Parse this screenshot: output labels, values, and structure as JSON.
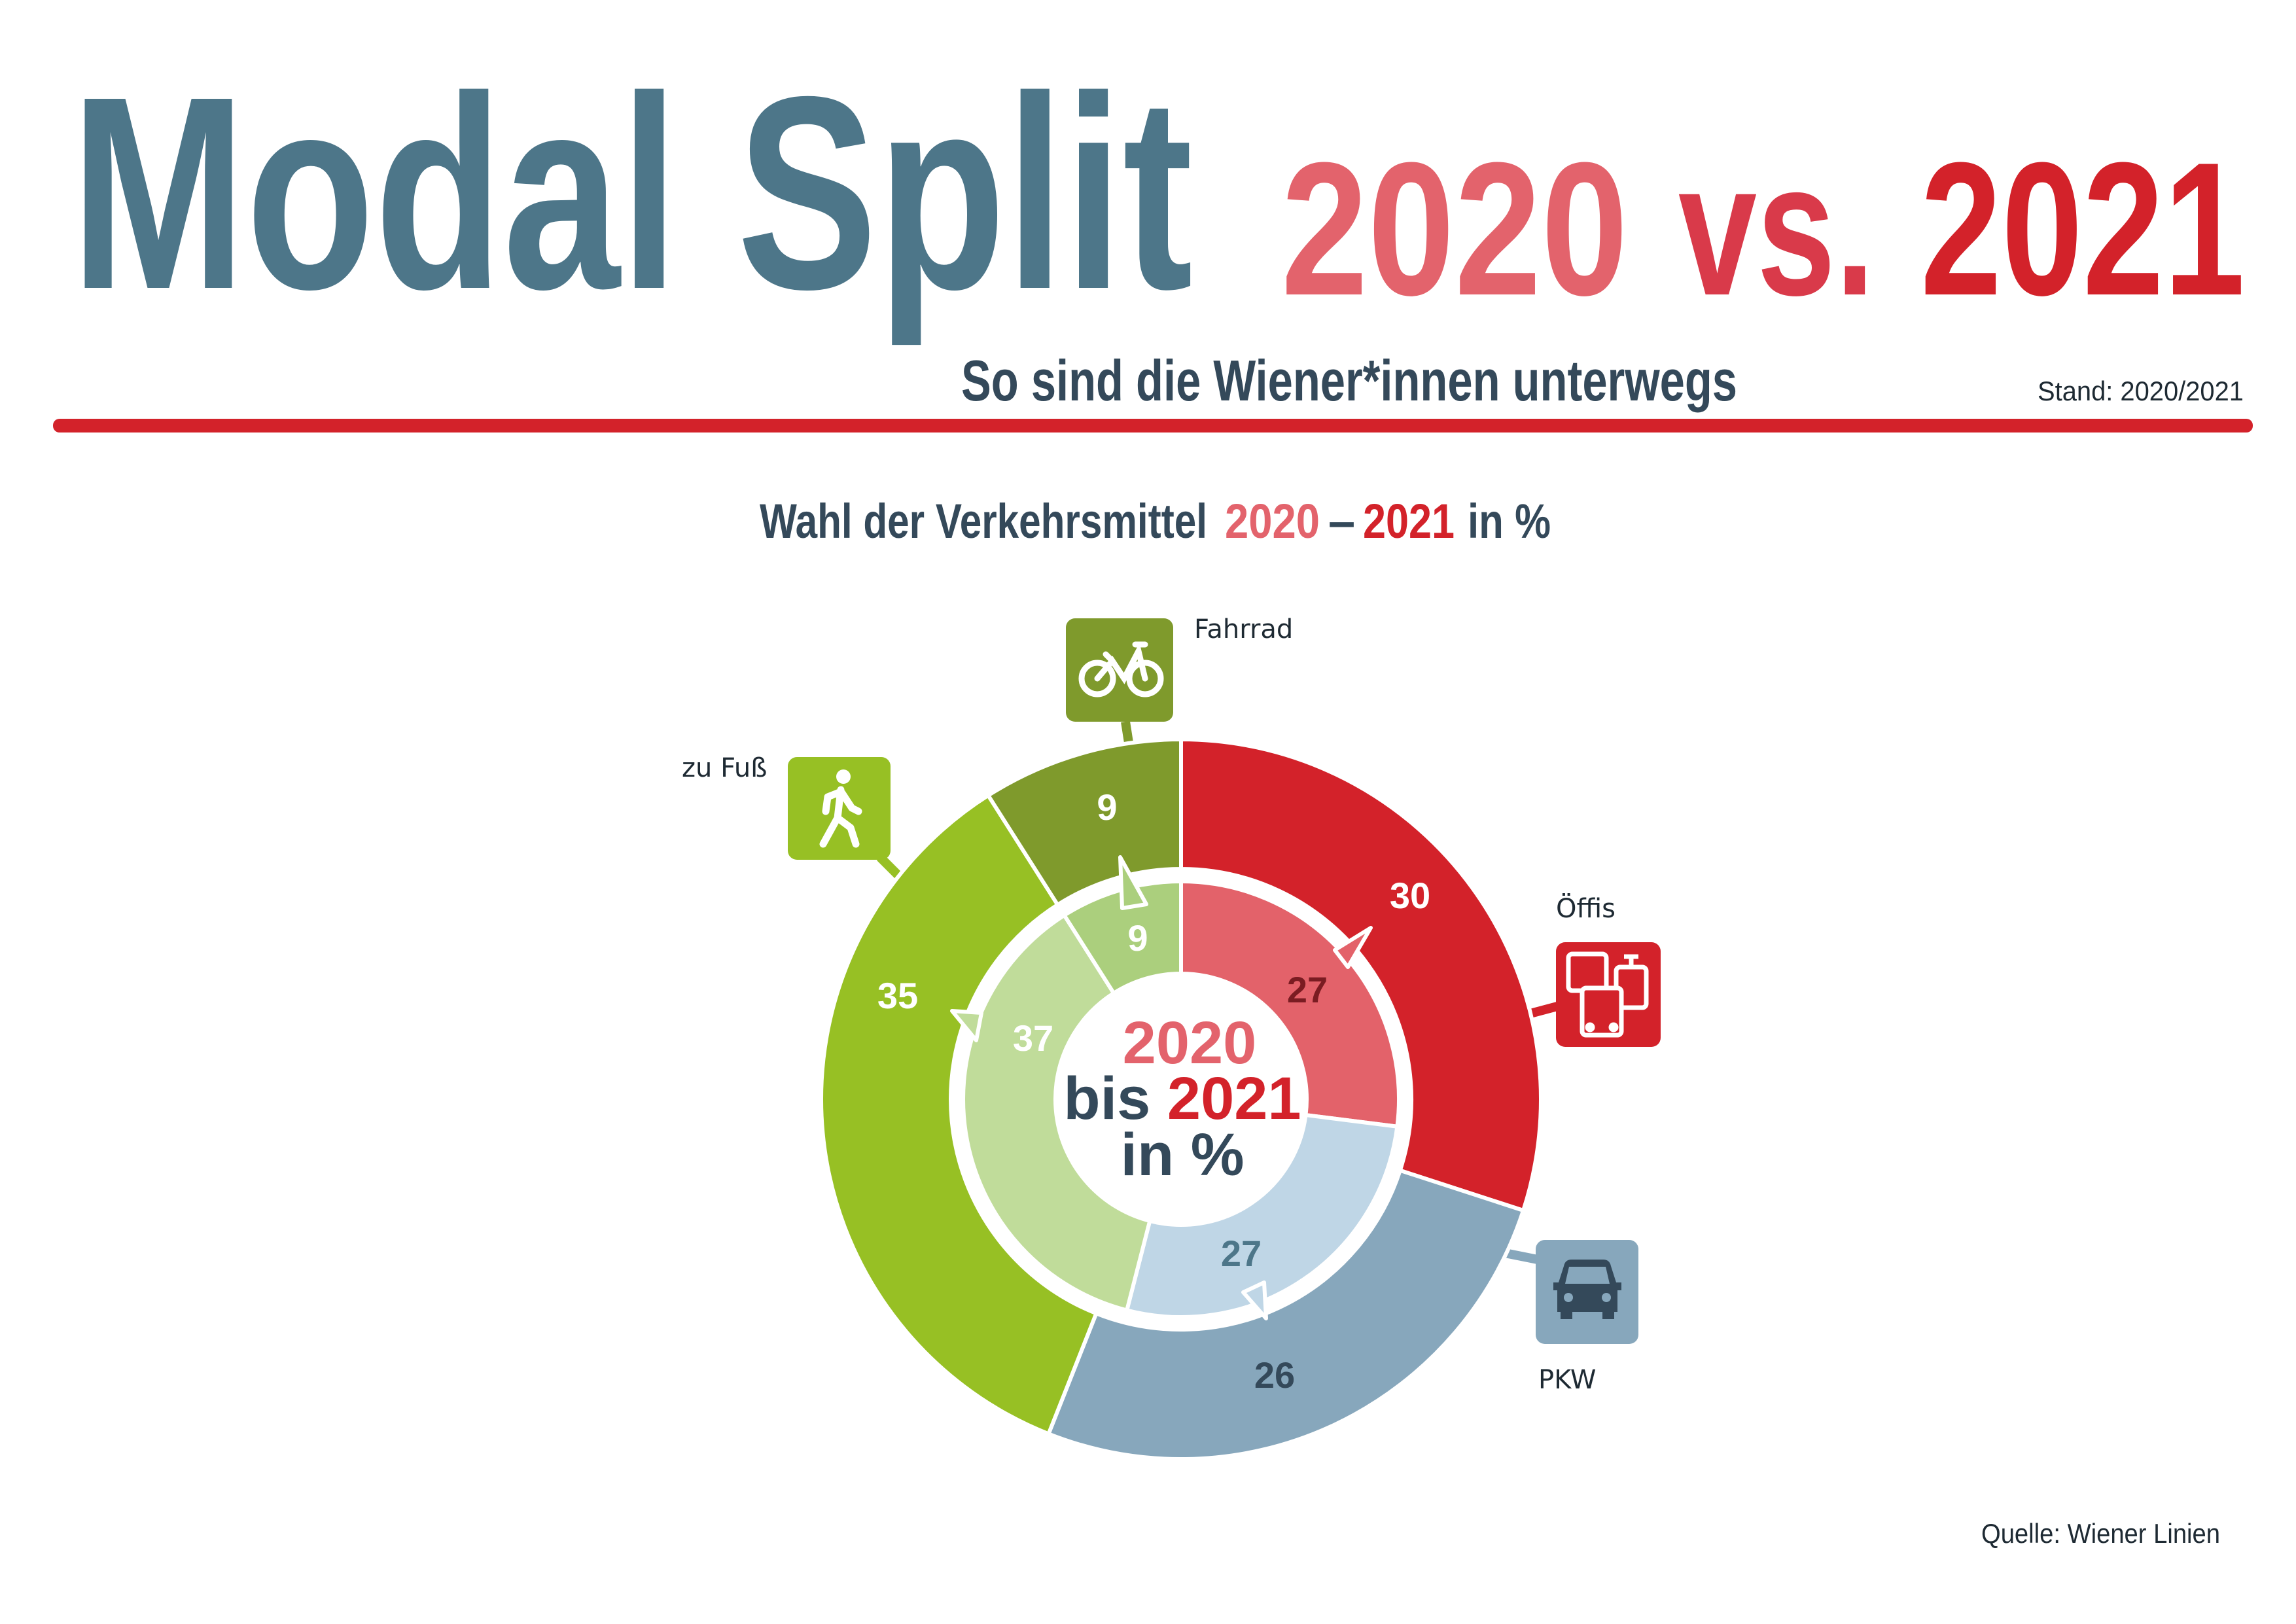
{
  "header": {
    "title": "Modal Split",
    "year_a": "2020",
    "vs": "vs.",
    "year_b": "2021",
    "subtitle": "So sind die Wiener*innen unterwegs",
    "stand": "Stand: 2020/2021"
  },
  "colors": {
    "title": "#4d7689",
    "year_2020": "#e3636c",
    "vs": "#d93a4a",
    "year_2021": "#d3222a",
    "text_dark": "#34495a",
    "rule": "#d3222a"
  },
  "chart_data": {
    "type": "pie",
    "variant": "donut-nested",
    "title_parts": {
      "prefix": "Wahl der Verkehrsmittel",
      "year_a": "2020",
      "dash": "–",
      "year_b": "2021",
      "suffix": "in %"
    },
    "center_label": {
      "line1": "2020",
      "line2_prefix": "bis",
      "line2_year": "2021",
      "line3": "in %"
    },
    "categories": [
      "Öffis",
      "PKW",
      "zu Fuß",
      "Fahrrad"
    ],
    "category_icons": [
      "bus-tram-icon",
      "car-icon",
      "pedestrian-icon",
      "bicycle-icon"
    ],
    "category_colors_2021": [
      "#d3222a",
      "#87a7bc",
      "#97c024",
      "#7f9a2c"
    ],
    "category_colors_2020": [
      "#e3626a",
      "#bfd6e6",
      "#c0dc9a",
      "#abcf7d"
    ],
    "series": [
      {
        "name": "2020",
        "ring": "inner",
        "values": [
          27,
          27,
          37,
          9
        ]
      },
      {
        "name": "2021",
        "ring": "outer",
        "values": [
          30,
          26,
          35,
          9
        ]
      }
    ],
    "start": "top",
    "direction": "clockwise"
  },
  "footer": {
    "source": "Quelle: Wiener Linien"
  }
}
